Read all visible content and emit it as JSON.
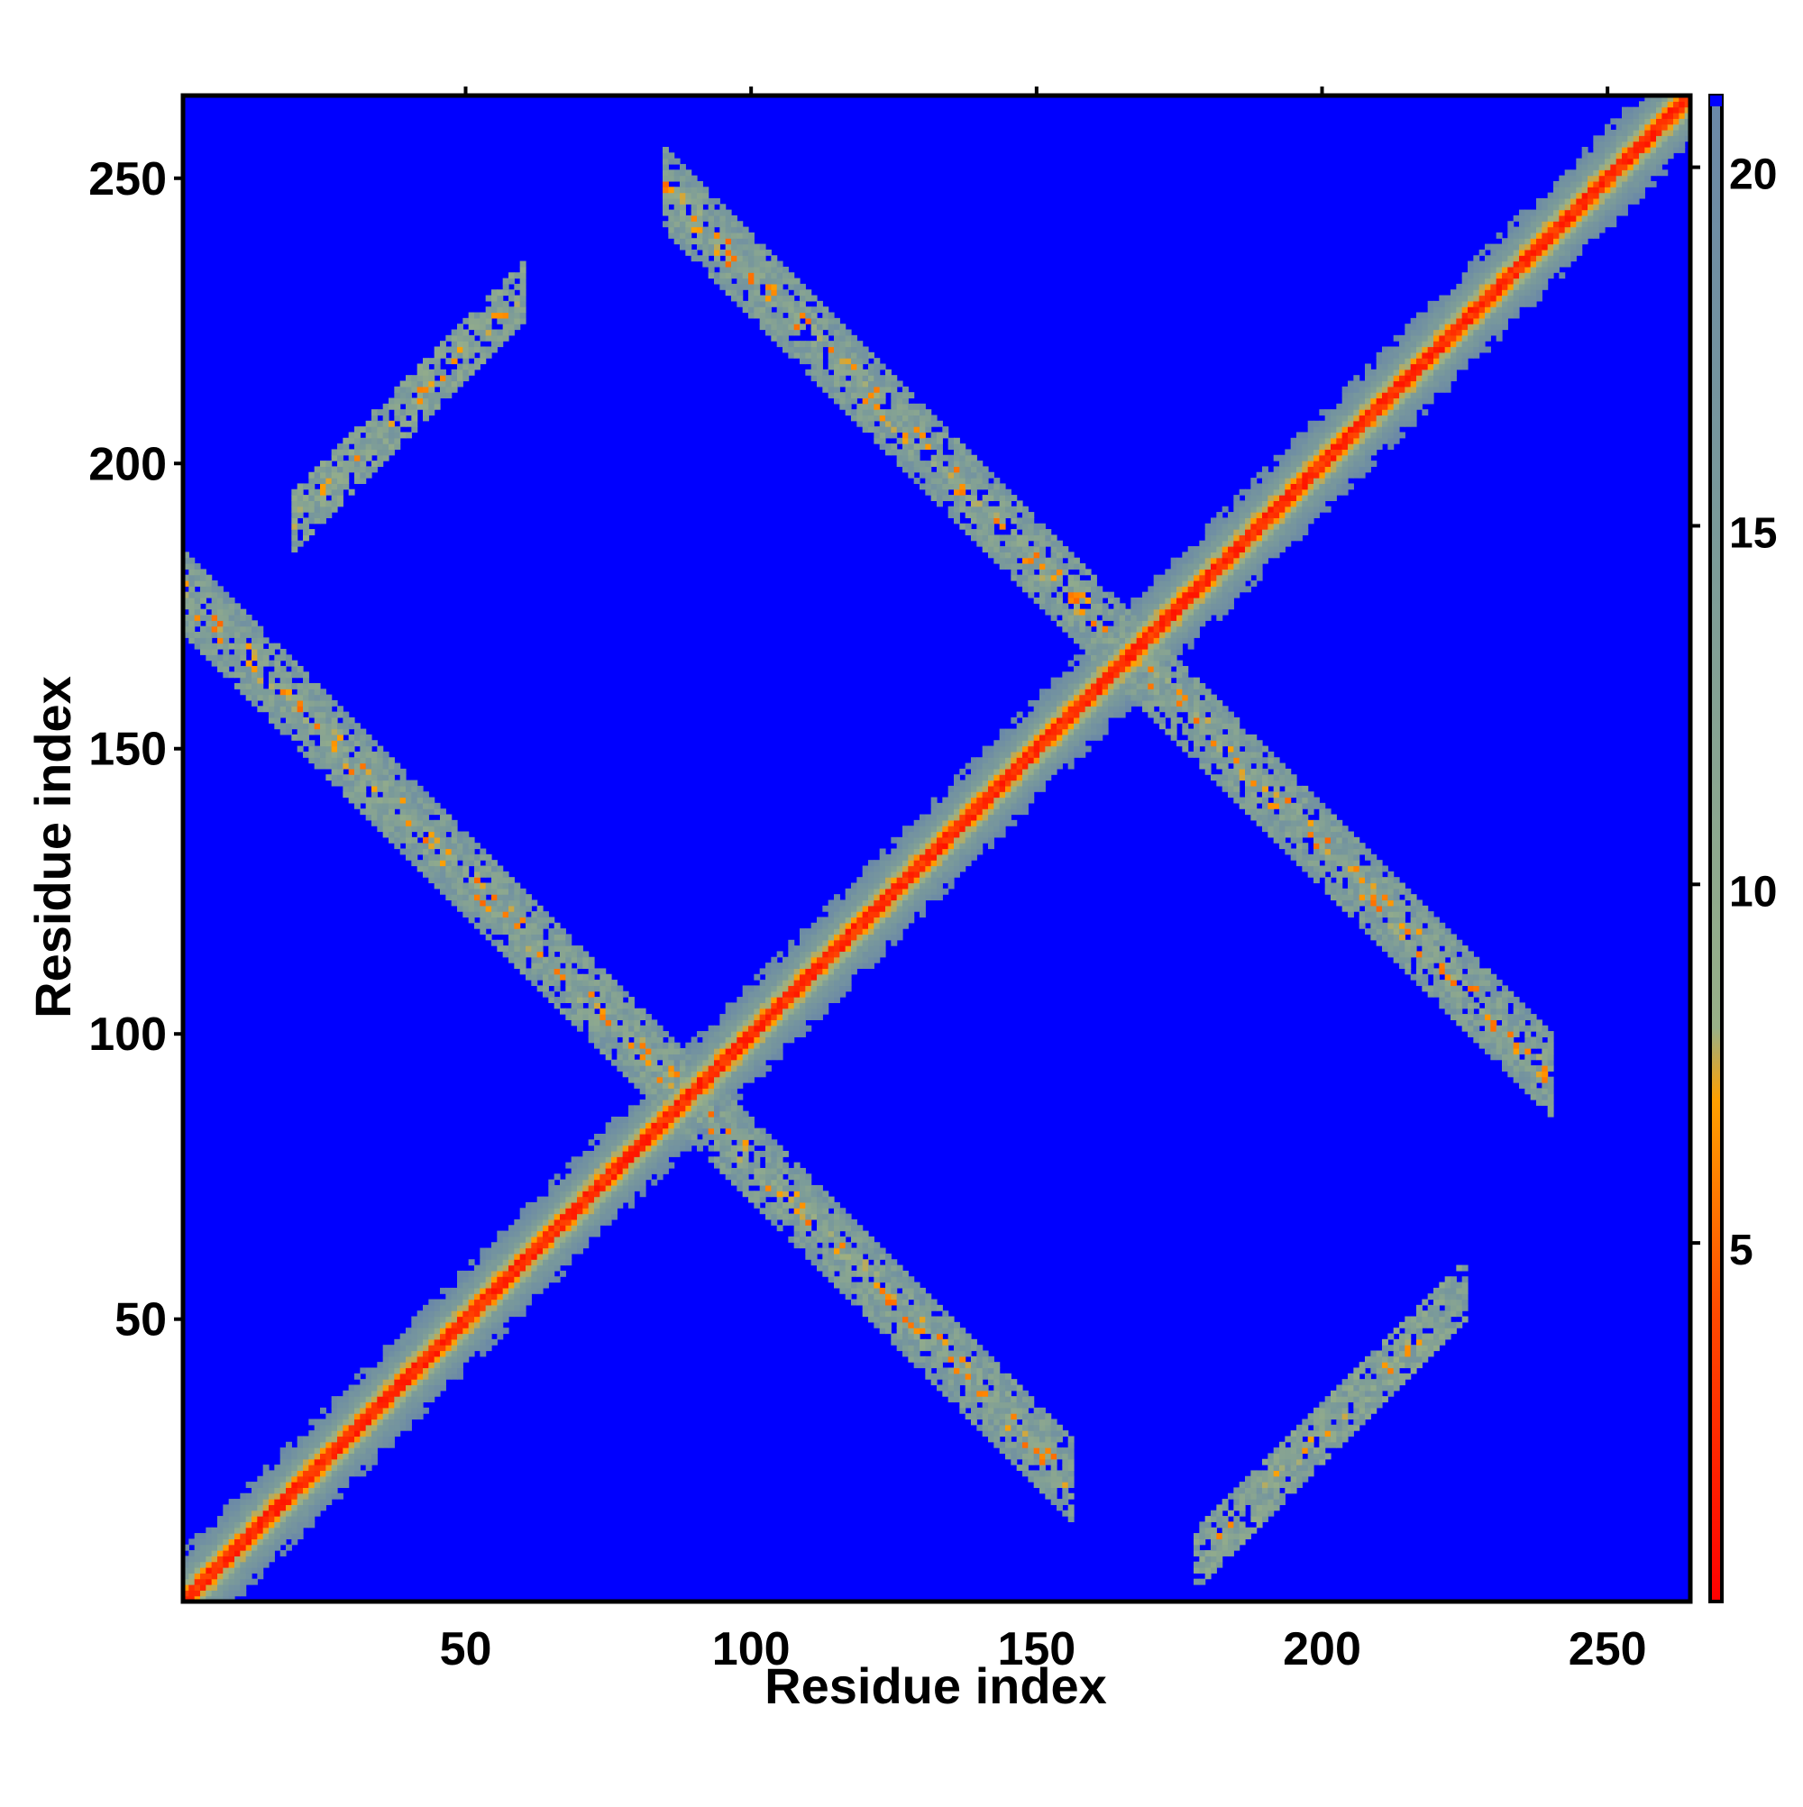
{
  "chart_data": {
    "type": "heatmap",
    "title": "",
    "xlabel": "Residue index",
    "ylabel": "Residue index",
    "xlim": [
      1,
      264
    ],
    "ylim": [
      1,
      264
    ],
    "x_ticks": [
      50,
      100,
      150,
      200,
      250
    ],
    "y_ticks": [
      50,
      100,
      150,
      200,
      250
    ],
    "colorbar": {
      "range": [
        0,
        21
      ],
      "ticks": [
        5,
        10,
        15,
        20
      ],
      "colors": [
        {
          "stop": 0,
          "color": "#ff0000"
        },
        {
          "stop": 4,
          "color": "#ff4a00"
        },
        {
          "stop": 7,
          "color": "#ffa000"
        },
        {
          "stop": 8,
          "color": "#98b088"
        },
        {
          "stop": 15,
          "color": "#7a9a9a"
        },
        {
          "stop": 21,
          "color": "#6a88a8"
        }
      ],
      "background_color": "#0000ff",
      "background_value": 21
    },
    "features": {
      "diagonal_band": {
        "start": 1,
        "end": 264,
        "core_value": 1,
        "half_width": 9
      },
      "antiparallel_contacts": [
        {
          "i_range": [
            20,
            155
          ],
          "sum": 178,
          "extent_x": [
            1,
            156
          ],
          "half_width": 7
        },
        {
          "i_range": [
            85,
            240
          ],
          "sum": 333,
          "extent_x": [
            85,
            240
          ],
          "half_width": 7
        }
      ],
      "parallel_contacts": [
        {
          "offset": 170,
          "x_range": [
            20,
            60
          ],
          "half_width": 5
        },
        {
          "offset": -170,
          "x_range": [
            178,
            225
          ],
          "half_width": 5
        }
      ]
    }
  }
}
